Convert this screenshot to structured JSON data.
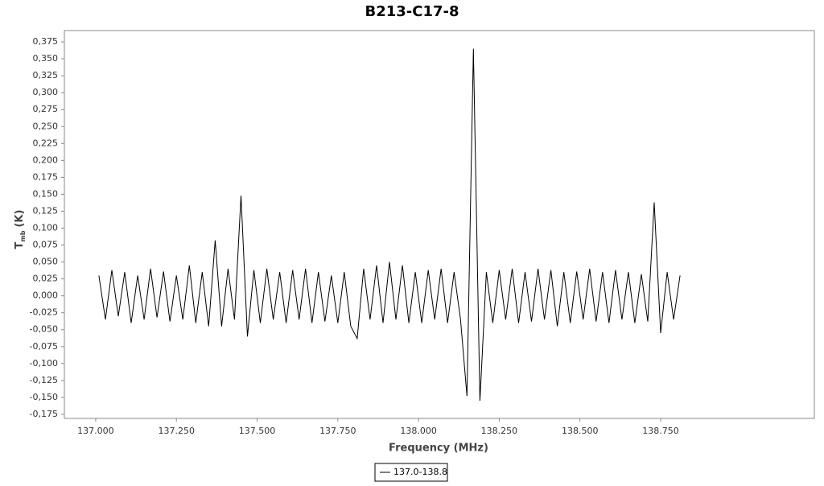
{
  "chart_data": {
    "type": "line",
    "title": "B213-C17-8",
    "x_label": "Frequency (MHz)",
    "y_label": "T",
    "y_label_sub": "mb",
    "y_label_unit": "(K)",
    "xlim": [
      136.903,
      139.226
    ],
    "ylim": [
      -0.181,
      0.3917
    ],
    "xticks": [
      {
        "value": 137.0,
        "label": "137.000"
      },
      {
        "value": 137.25,
        "label": "137.250"
      },
      {
        "value": 137.5,
        "label": "137.500"
      },
      {
        "value": 137.75,
        "label": "137.750"
      },
      {
        "value": 138.0,
        "label": "138.000"
      },
      {
        "value": 138.25,
        "label": "138.250"
      },
      {
        "value": 138.5,
        "label": "138.500"
      },
      {
        "value": 138.75,
        "label": "138.750"
      }
    ],
    "yticks": [
      {
        "value": 0.375,
        "label": "0,375"
      },
      {
        "value": 0.35,
        "label": "0,350"
      },
      {
        "value": 0.325,
        "label": "0,325"
      },
      {
        "value": 0.3,
        "label": "0,300"
      },
      {
        "value": 0.275,
        "label": "0,275"
      },
      {
        "value": 0.25,
        "label": "0,250"
      },
      {
        "value": 0.225,
        "label": "0,225"
      },
      {
        "value": 0.2,
        "label": "0,200"
      },
      {
        "value": 0.175,
        "label": "0,175"
      },
      {
        "value": 0.15,
        "label": "0,150"
      },
      {
        "value": 0.125,
        "label": "0,125"
      },
      {
        "value": 0.1,
        "label": "0,100"
      },
      {
        "value": 0.075,
        "label": "0,075"
      },
      {
        "value": 0.05,
        "label": "0,050"
      },
      {
        "value": 0.025,
        "label": "0,025"
      },
      {
        "value": 0,
        "label": "0,000"
      },
      {
        "value": -0.025,
        "label": "-0,025"
      },
      {
        "value": -0.05,
        "label": "-0,050"
      },
      {
        "value": -0.075,
        "label": "-0,075"
      },
      {
        "value": -0.1,
        "label": "-0,100"
      },
      {
        "value": -0.125,
        "label": "-0,125"
      },
      {
        "value": -0.15,
        "label": "-0,150"
      },
      {
        "value": -0.175,
        "label": "-0,175"
      }
    ],
    "x": [
      137.01,
      137.03,
      137.05,
      137.07,
      137.09,
      137.11,
      137.13,
      137.15,
      137.17,
      137.19,
      137.21,
      137.23,
      137.25,
      137.27,
      137.29,
      137.31,
      137.33,
      137.35,
      137.37,
      137.39,
      137.41,
      137.43,
      137.45,
      137.47,
      137.49,
      137.51,
      137.53,
      137.55,
      137.57,
      137.59,
      137.61,
      137.63,
      137.65,
      137.67,
      137.69,
      137.71,
      137.73,
      137.75,
      137.77,
      137.79,
      137.81,
      137.83,
      137.85,
      137.87,
      137.89,
      137.91,
      137.93,
      137.95,
      137.97,
      137.99,
      138.01,
      138.03,
      138.05,
      138.07,
      138.09,
      138.11,
      138.13,
      138.15,
      138.17,
      138.19,
      138.21,
      138.23,
      138.25,
      138.27,
      138.29,
      138.31,
      138.33,
      138.35,
      138.37,
      138.39,
      138.41,
      138.43,
      138.45,
      138.47,
      138.49,
      138.51,
      138.53,
      138.55,
      138.57,
      138.59,
      138.61,
      138.63,
      138.65,
      138.67,
      138.69,
      138.71,
      138.73,
      138.75,
      138.77,
      138.79,
      138.81
    ],
    "series": [
      {
        "name": "137.0-138.8",
        "color": "#000000",
        "values": [
          0.03,
          -0.035,
          0.038,
          -0.03,
          0.035,
          -0.04,
          0.03,
          -0.035,
          0.04,
          -0.032,
          0.036,
          -0.038,
          0.03,
          -0.035,
          0.045,
          -0.04,
          0.035,
          -0.045,
          0.082,
          -0.045,
          0.04,
          -0.035,
          0.148,
          -0.06,
          0.038,
          -0.04,
          0.04,
          -0.035,
          0.035,
          -0.04,
          0.038,
          -0.035,
          0.04,
          -0.04,
          0.035,
          -0.038,
          0.03,
          -0.04,
          0.035,
          -0.045,
          -0.063,
          0.04,
          -0.035,
          0.045,
          -0.04,
          0.05,
          -0.035,
          0.045,
          -0.04,
          0.035,
          -0.04,
          0.038,
          -0.035,
          0.04,
          -0.04,
          0.035,
          -0.035,
          -0.148,
          0.365,
          -0.155,
          0.035,
          -0.04,
          0.038,
          -0.035,
          0.04,
          -0.04,
          0.035,
          -0.038,
          0.04,
          -0.035,
          0.038,
          -0.045,
          0.035,
          -0.04,
          0.036,
          -0.035,
          0.04,
          -0.038,
          0.035,
          -0.04,
          0.038,
          -0.035,
          0.035,
          -0.04,
          0.032,
          -0.038,
          0.138,
          -0.055,
          0.035,
          -0.035,
          0.03
        ]
      }
    ]
  }
}
